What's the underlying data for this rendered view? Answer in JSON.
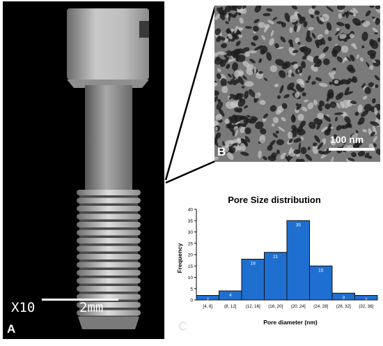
{
  "panel_a": {
    "label": "A",
    "scale_prefix": "X10",
    "scale_value": "2mm"
  },
  "panel_b": {
    "label": "B",
    "scale_label": "100 nm"
  },
  "panel_c": {
    "label": "C"
  },
  "chart_data": {
    "type": "bar",
    "title": "Pore Size distribution",
    "xlabel": "Pore diameter (nm)",
    "ylabel": "Frequency",
    "categories": [
      "[4, 8]",
      "(8, 12]",
      "(12, 16]",
      "(16, 20]",
      "(20, 24]",
      "(24, 28]",
      "(28, 32]",
      "(32, 36]"
    ],
    "values": [
      2,
      4,
      18,
      21,
      35,
      15,
      3,
      2
    ],
    "ylim": [
      0,
      40
    ],
    "yticks": [
      0,
      5,
      10,
      15,
      20,
      25,
      30,
      35,
      40
    ],
    "bar_color": "#1f6fd1",
    "grid": false,
    "data_labels": true
  }
}
